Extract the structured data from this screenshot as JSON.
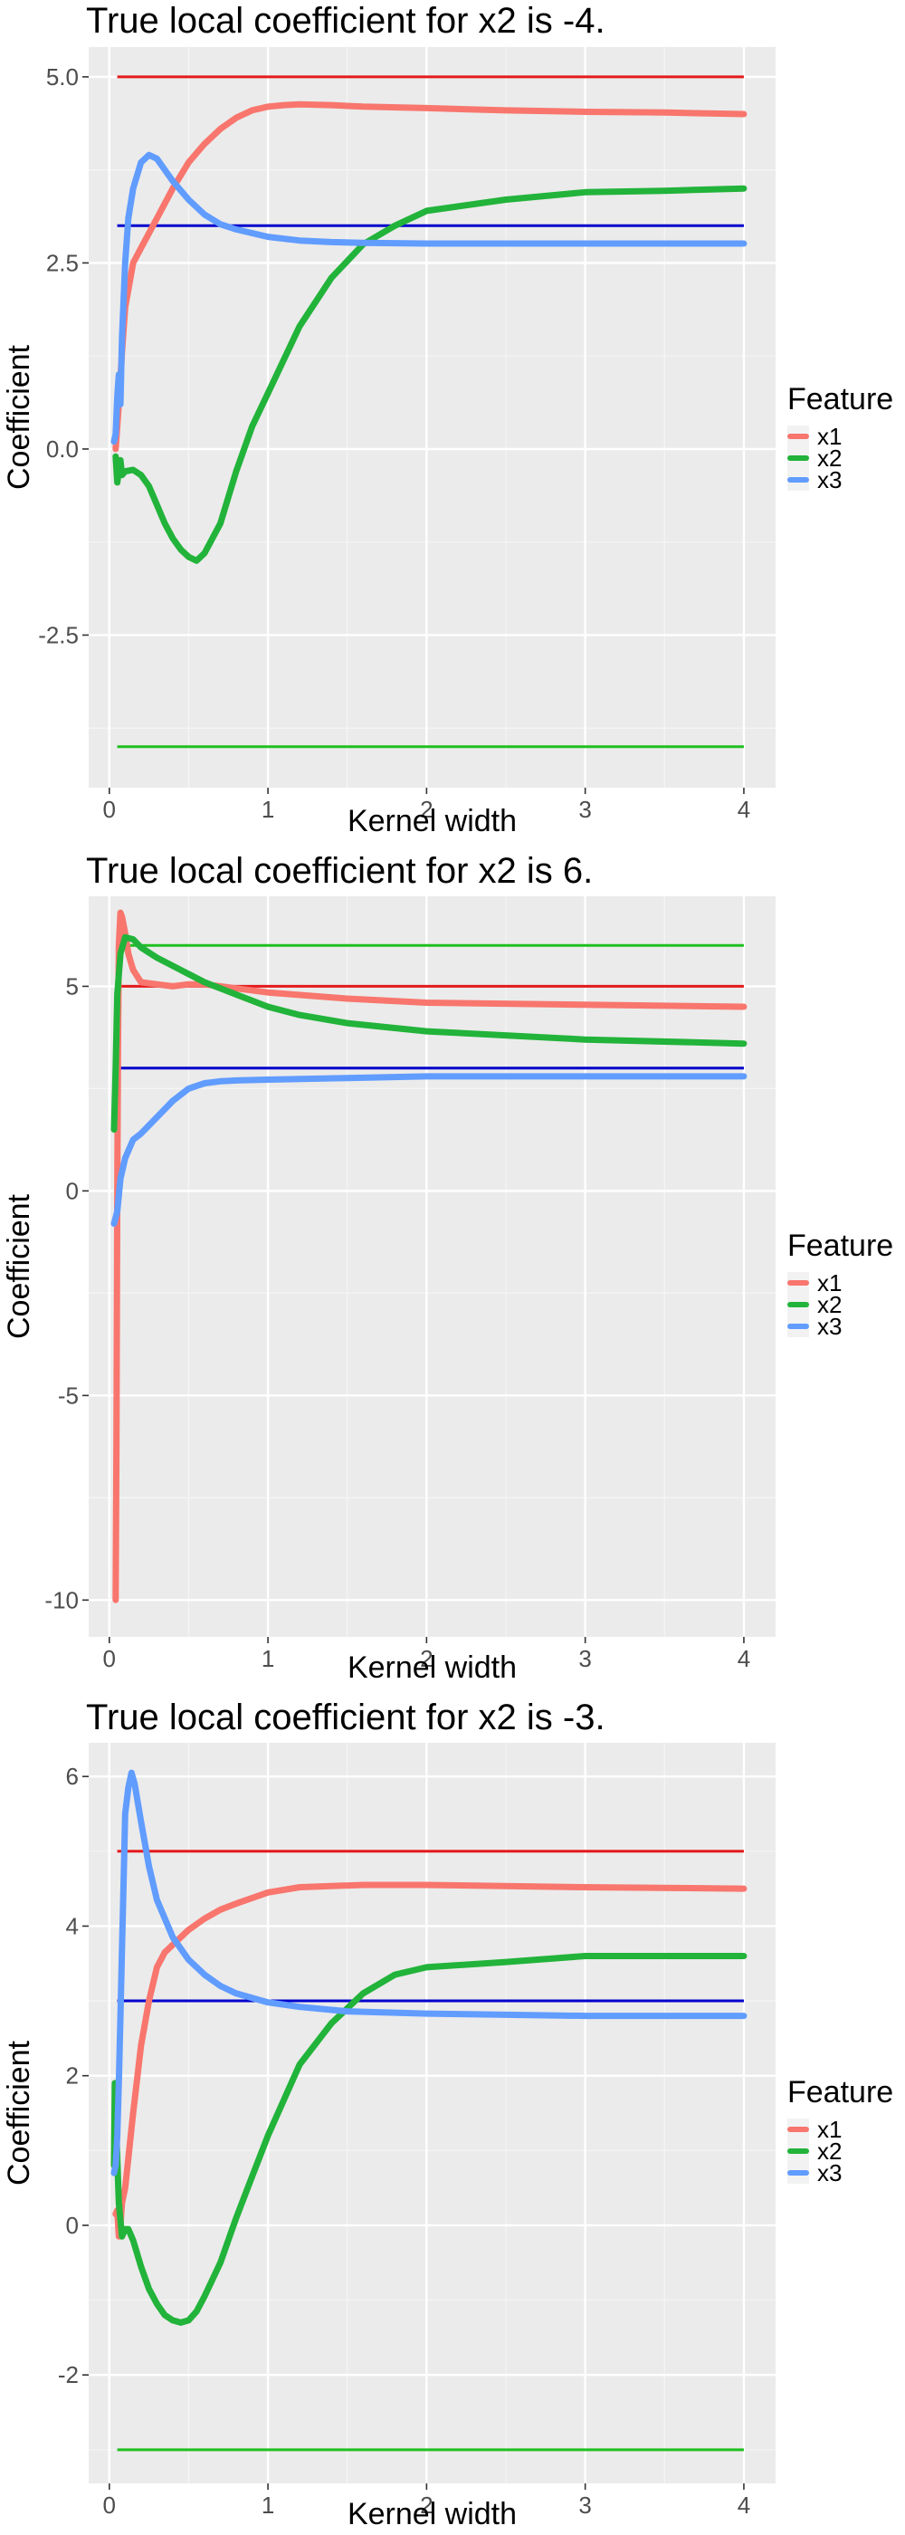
{
  "chart_data": [
    {
      "type": "line",
      "title": "True local coefficient for x2 is -4.",
      "xlabel": "Kernel width",
      "ylabel": "Coefficient",
      "xlim": [
        -0.13,
        4.2
      ],
      "ylim": [
        -4.55,
        5.4
      ],
      "xticks": [
        0,
        1,
        2,
        3,
        4
      ],
      "xtick_labels": [
        "0",
        "1",
        "2",
        "3",
        "4"
      ],
      "yticks": [
        -2.5,
        0,
        2.5,
        5
      ],
      "ytick_labels": [
        "-2.5",
        "0.0",
        "2.5",
        "5.0"
      ],
      "grid": true,
      "legend": {
        "title": "Feature",
        "position": "right",
        "entries": [
          "x1",
          "x2",
          "x3"
        ]
      },
      "colors": {
        "x1": "#F8766D",
        "x2": "#22B33A",
        "x3": "#619CFF"
      },
      "reference_colors": {
        "x1": "#E41A1C",
        "x2": "#1FC01F",
        "x3": "#0000CD"
      },
      "series": [
        {
          "name": "x1",
          "x": [
            0.04,
            0.06,
            0.08,
            0.1,
            0.15,
            0.2,
            0.3,
            0.4,
            0.5,
            0.6,
            0.7,
            0.8,
            0.9,
            1.0,
            1.1,
            1.2,
            1.4,
            1.6,
            2.0,
            2.5,
            3.0,
            3.5,
            4.0
          ],
          "y": [
            0.0,
            0.6,
            1.3,
            1.9,
            2.5,
            2.7,
            3.1,
            3.5,
            3.85,
            4.1,
            4.3,
            4.45,
            4.55,
            4.6,
            4.62,
            4.63,
            4.62,
            4.6,
            4.58,
            4.55,
            4.53,
            4.52,
            4.5
          ]
        },
        {
          "name": "x2",
          "x": [
            0.04,
            0.05,
            0.06,
            0.07,
            0.08,
            0.1,
            0.15,
            0.2,
            0.25,
            0.3,
            0.35,
            0.4,
            0.45,
            0.5,
            0.55,
            0.6,
            0.7,
            0.8,
            0.9,
            1.0,
            1.2,
            1.4,
            1.6,
            1.8,
            2.0,
            2.5,
            3.0,
            3.5,
            4.0
          ],
          "y": [
            -0.1,
            -0.45,
            -0.3,
            -0.15,
            -0.35,
            -0.3,
            -0.28,
            -0.35,
            -0.5,
            -0.75,
            -1.0,
            -1.2,
            -1.35,
            -1.45,
            -1.5,
            -1.4,
            -1.0,
            -0.3,
            0.3,
            0.75,
            1.65,
            2.3,
            2.75,
            3.0,
            3.2,
            3.35,
            3.45,
            3.47,
            3.5
          ]
        },
        {
          "name": "x3",
          "x": [
            0.03,
            0.04,
            0.05,
            0.06,
            0.07,
            0.08,
            0.1,
            0.12,
            0.15,
            0.2,
            0.25,
            0.3,
            0.35,
            0.4,
            0.5,
            0.6,
            0.7,
            0.8,
            1.0,
            1.2,
            1.4,
            1.6,
            2.0,
            3.0,
            4.0
          ],
          "y": [
            0.1,
            0.2,
            0.7,
            1.0,
            0.6,
            1.5,
            2.5,
            3.1,
            3.5,
            3.85,
            3.95,
            3.9,
            3.75,
            3.6,
            3.35,
            3.15,
            3.02,
            2.95,
            2.85,
            2.8,
            2.78,
            2.77,
            2.76,
            2.76,
            2.76
          ]
        }
      ],
      "reference_lines": [
        {
          "name": "x1",
          "y": 5,
          "x": [
            0.05,
            4.0
          ]
        },
        {
          "name": "x2",
          "y": -4,
          "x": [
            0.05,
            4.0
          ]
        },
        {
          "name": "x3",
          "y": 3,
          "x": [
            0.05,
            4.0
          ]
        }
      ]
    },
    {
      "type": "line",
      "title": "True local coefficient for x2 is 6.",
      "xlabel": "Kernel width",
      "ylabel": "Coefficient",
      "xlim": [
        -0.13,
        4.2
      ],
      "ylim": [
        -10.9,
        7.2
      ],
      "xticks": [
        0,
        1,
        2,
        3,
        4
      ],
      "xtick_labels": [
        "0",
        "1",
        "2",
        "3",
        "4"
      ],
      "yticks": [
        -10,
        -5,
        0,
        5
      ],
      "ytick_labels": [
        "-10",
        "-5",
        "0",
        "5"
      ],
      "grid": true,
      "legend": {
        "title": "Feature",
        "position": "right",
        "entries": [
          "x1",
          "x2",
          "x3"
        ]
      },
      "colors": {
        "x1": "#F8766D",
        "x2": "#22B33A",
        "x3": "#619CFF"
      },
      "reference_colors": {
        "x1": "#E41A1C",
        "x2": "#1FC01F",
        "x3": "#0000CD"
      },
      "series": [
        {
          "name": "x1",
          "x": [
            0.04,
            0.045,
            0.05,
            0.055,
            0.06,
            0.07,
            0.08,
            0.1,
            0.12,
            0.15,
            0.2,
            0.3,
            0.4,
            0.5,
            0.6,
            0.8,
            1.0,
            1.5,
            2.0,
            3.0,
            4.0
          ],
          "y": [
            -10.0,
            -6.0,
            0.0,
            3.5,
            6.0,
            6.8,
            6.7,
            6.3,
            5.8,
            5.4,
            5.1,
            5.05,
            5.0,
            5.05,
            5.05,
            4.95,
            4.85,
            4.7,
            4.6,
            4.55,
            4.5
          ]
        },
        {
          "name": "x2",
          "x": [
            0.03,
            0.04,
            0.05,
            0.07,
            0.1,
            0.15,
            0.2,
            0.3,
            0.4,
            0.5,
            0.6,
            0.8,
            1.0,
            1.2,
            1.5,
            2.0,
            3.0,
            4.0
          ],
          "y": [
            1.5,
            3.0,
            4.8,
            5.8,
            6.2,
            6.15,
            5.95,
            5.7,
            5.5,
            5.3,
            5.1,
            4.8,
            4.5,
            4.3,
            4.1,
            3.9,
            3.7,
            3.6
          ]
        },
        {
          "name": "x3",
          "x": [
            0.03,
            0.05,
            0.07,
            0.1,
            0.15,
            0.2,
            0.3,
            0.4,
            0.5,
            0.6,
            0.7,
            0.8,
            1.0,
            1.5,
            2.0,
            3.0,
            4.0
          ],
          "y": [
            -0.8,
            -0.5,
            0.3,
            0.8,
            1.25,
            1.4,
            1.8,
            2.2,
            2.5,
            2.63,
            2.68,
            2.7,
            2.72,
            2.76,
            2.8,
            2.8,
            2.8
          ]
        }
      ],
      "reference_lines": [
        {
          "name": "x1",
          "y": 5,
          "x": [
            0.05,
            4.0
          ]
        },
        {
          "name": "x2",
          "y": 6,
          "x": [
            0.05,
            4.0
          ]
        },
        {
          "name": "x3",
          "y": 3,
          "x": [
            0.05,
            4.0
          ]
        }
      ]
    },
    {
      "type": "line",
      "title": "True local coefficient for x2 is -3.",
      "xlabel": "Kernel width",
      "ylabel": "Coefficient",
      "xlim": [
        -0.13,
        4.2
      ],
      "ylim": [
        -3.45,
        6.45
      ],
      "xticks": [
        0,
        1,
        2,
        3,
        4
      ],
      "xtick_labels": [
        "0",
        "1",
        "2",
        "3",
        "4"
      ],
      "yticks": [
        -2,
        0,
        2,
        4,
        6
      ],
      "ytick_labels": [
        "-2",
        "0",
        "2",
        "4",
        "6"
      ],
      "grid": true,
      "legend": {
        "title": "Feature",
        "position": "right",
        "entries": [
          "x1",
          "x2",
          "x3"
        ]
      },
      "colors": {
        "x1": "#F8766D",
        "x2": "#22B33A",
        "x3": "#619CFF"
      },
      "reference_colors": {
        "x1": "#E41A1C",
        "x2": "#1FC01F",
        "x3": "#0000CD"
      },
      "series": [
        {
          "name": "x1",
          "x": [
            0.04,
            0.05,
            0.06,
            0.07,
            0.08,
            0.1,
            0.15,
            0.2,
            0.25,
            0.3,
            0.35,
            0.4,
            0.5,
            0.6,
            0.7,
            0.8,
            1.0,
            1.2,
            1.6,
            2.0,
            3.0,
            4.0
          ],
          "y": [
            0.15,
            0.2,
            -0.15,
            0.0,
            0.3,
            0.5,
            1.5,
            2.4,
            3.0,
            3.45,
            3.65,
            3.75,
            3.95,
            4.1,
            4.22,
            4.3,
            4.45,
            4.52,
            4.55,
            4.55,
            4.52,
            4.5
          ]
        },
        {
          "name": "x2",
          "x": [
            0.03,
            0.035,
            0.04,
            0.05,
            0.06,
            0.08,
            0.1,
            0.12,
            0.15,
            0.2,
            0.25,
            0.3,
            0.35,
            0.4,
            0.45,
            0.5,
            0.55,
            0.6,
            0.7,
            0.8,
            0.9,
            1.0,
            1.2,
            1.4,
            1.6,
            1.8,
            2.0,
            2.5,
            3.0,
            3.5,
            4.0
          ],
          "y": [
            0.8,
            1.9,
            1.5,
            0.9,
            0.3,
            -0.15,
            -0.05,
            -0.05,
            -0.2,
            -0.55,
            -0.85,
            -1.05,
            -1.2,
            -1.27,
            -1.3,
            -1.27,
            -1.15,
            -0.95,
            -0.5,
            0.1,
            0.65,
            1.2,
            2.15,
            2.7,
            3.1,
            3.35,
            3.45,
            3.52,
            3.6,
            3.6,
            3.6
          ]
        },
        {
          "name": "x3",
          "x": [
            0.03,
            0.04,
            0.05,
            0.06,
            0.07,
            0.08,
            0.09,
            0.1,
            0.12,
            0.14,
            0.16,
            0.2,
            0.25,
            0.3,
            0.4,
            0.5,
            0.6,
            0.7,
            0.8,
            1.0,
            1.2,
            1.5,
            2.0,
            3.0,
            4.0
          ],
          "y": [
            0.7,
            0.8,
            1.2,
            1.9,
            2.8,
            3.7,
            4.6,
            5.5,
            5.85,
            6.05,
            5.9,
            5.4,
            4.8,
            4.35,
            3.85,
            3.55,
            3.35,
            3.2,
            3.1,
            2.98,
            2.92,
            2.86,
            2.83,
            2.8,
            2.8
          ]
        }
      ],
      "reference_lines": [
        {
          "name": "x1",
          "y": 5,
          "x": [
            0.05,
            4.0
          ]
        },
        {
          "name": "x2",
          "y": -3,
          "x": [
            0.05,
            4.0
          ]
        },
        {
          "name": "x3",
          "y": 3,
          "x": [
            0.05,
            4.0
          ]
        }
      ]
    }
  ]
}
